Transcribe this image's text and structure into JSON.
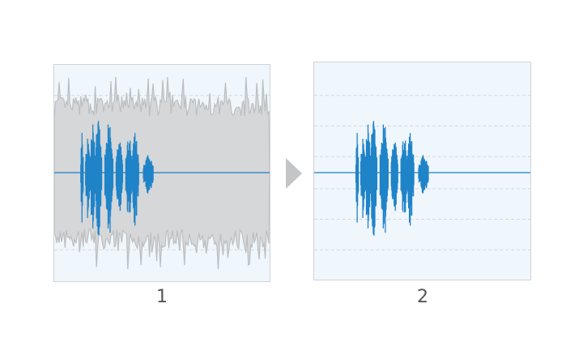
{
  "panels": [
    {
      "label": "1",
      "description_state": "noisy"
    },
    {
      "label": "2",
      "description_state": "clean"
    }
  ],
  "colors": {
    "signal": "#1f83c8",
    "noise": "#bdbec0",
    "noise_fill": "#d6d7d8",
    "background": "#eff6fc",
    "arrow": "#c4c5c7",
    "gridline": "#d4d8dc"
  },
  "icons": {
    "arrow": "arrow-right-icon"
  }
}
